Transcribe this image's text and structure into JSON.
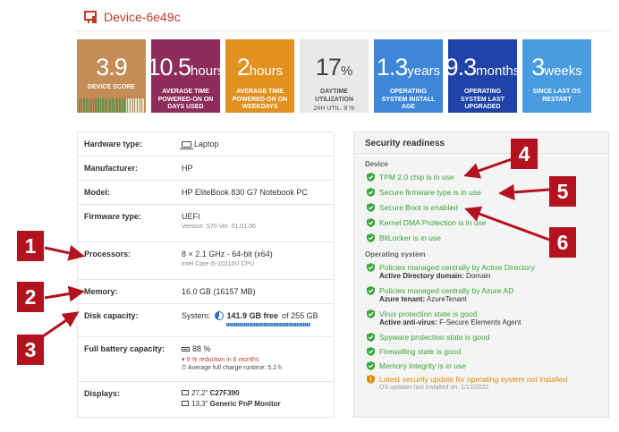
{
  "header": {
    "title": "Device-6e49c",
    "icon": "device-icon"
  },
  "tiles": [
    {
      "value": "3.9",
      "unit": "",
      "label": "DEVICE SCORE",
      "sub": "",
      "score_fraction": 0.7
    },
    {
      "value": "10.5",
      "unit": "hours",
      "label": "AVERAGE TIME POWERED-ON ON DAYS USED",
      "sub": ""
    },
    {
      "value": "2",
      "unit": "hours",
      "label": "AVERAGE TIME POWERED-ON ON WEEKDAYS",
      "sub": ""
    },
    {
      "value": "17",
      "unit": "%",
      "label": "DAYTIME UTILIZATION",
      "sub": "24H UTIL. 8 %"
    },
    {
      "value": "1.3",
      "unit": "years",
      "label": "OPERATING SYSTEM INSTALL AGE",
      "sub": ""
    },
    {
      "value": "9.3",
      "unit": "months",
      "label": "OPERATING SYSTEM LAST UPGRADED",
      "sub": ""
    },
    {
      "value": "3",
      "unit": "weeks",
      "label": "SINCE LAST OS RESTART",
      "sub": ""
    }
  ],
  "details": {
    "hardware_type": {
      "key": "Hardware type:",
      "value": "Laptop"
    },
    "manufacturer": {
      "key": "Manufacturer:",
      "value": "HP"
    },
    "model": {
      "key": "Model:",
      "value": "HP EliteBook 830 G7 Notebook PC"
    },
    "firmware": {
      "key": "Firmware type:",
      "value": "UEFI",
      "sub": "Version: S70 Ver. 01.01.06"
    },
    "processors": {
      "key": "Processors:",
      "value": "8 × 2.1 GHz - 64-bit (x64)",
      "sub": "Intel Core i5-10210U CPU"
    },
    "memory": {
      "key": "Memory:",
      "value": "16.0 GB (16157 MB)"
    },
    "disk": {
      "key": "Disk capacity:",
      "prefix": "System:",
      "free": "141.9 GB free",
      "total": "of 255 GB",
      "used_fraction": 0.45
    },
    "battery": {
      "key": "Full battery capacity:",
      "value": "88 %",
      "reduction": "9 % reduction in 6 months",
      "runtime": "Average full charge runtime: 5.2 h"
    },
    "displays": {
      "key": "Displays:",
      "items": [
        {
          "size": "27,2\"",
          "name": "C27F390"
        },
        {
          "size": "13,3\"",
          "name": "Generic PnP Monitor"
        }
      ]
    }
  },
  "security": {
    "title": "Security readiness",
    "device_heading": "Device",
    "device_items": [
      "TPM 2.0 chip is in use",
      "Secure firmware type is in use",
      "Secure Boot is enabled",
      "Kernel DMA Protection is in use",
      "BitLocker is in use"
    ],
    "os_heading": "Operating system",
    "os_items": [
      {
        "text": "Policies managed centrally by Active Directory",
        "detail_key": "Active Directory domain:",
        "detail_val": "Domain"
      },
      {
        "text": "Policies managed centrally by Azure AD",
        "detail_key": "Azure tenant:",
        "detail_val": "AzureTenant"
      },
      {
        "text": "Virus protection state is good",
        "detail_key": "Active anti-virus:",
        "detail_val": "F-Secure Elements Agent"
      },
      {
        "text": "Spyware protection state is good"
      },
      {
        "text": "Firewalling state is good"
      },
      {
        "text": "Memory Integrity is in use"
      }
    ],
    "warning": {
      "text": "Latest security update for operating system not installed",
      "sub": "OS updates last installed on: 1/12/2022"
    }
  },
  "callouts": [
    "1",
    "2",
    "3",
    "4",
    "5",
    "6"
  ],
  "colors": {
    "accent": "#c0392b",
    "good": "#3aa53a",
    "warn": "#e08a00",
    "callout": "#b3121f"
  }
}
